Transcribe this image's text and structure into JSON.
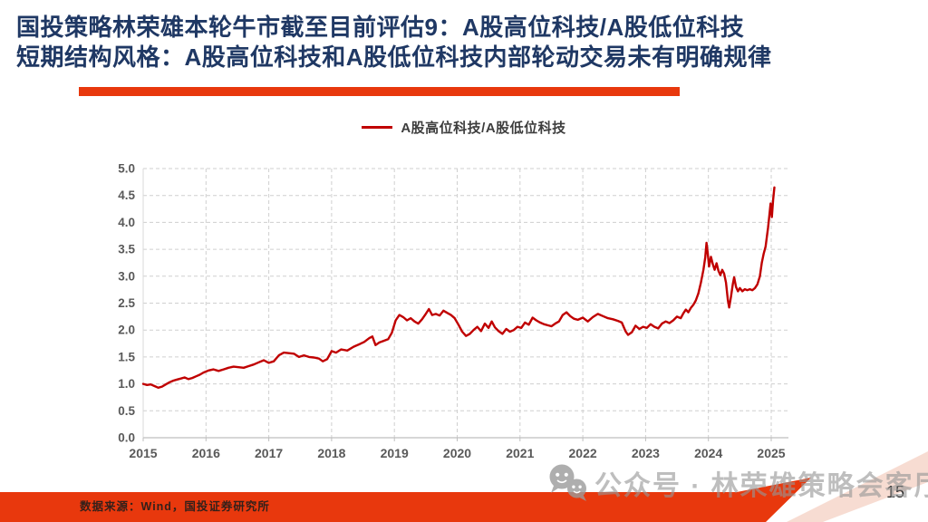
{
  "slide": {
    "title_line1": "国投策略林荣雄本轮牛市截至目前评估9：A股高位科技/A股低位科技",
    "title_line2": "短期结构风格：A股高位科技和A股低位科技内部轮动交易未有明确规律",
    "source_note": "数据来源：Wind，国投证券研究所",
    "watermark_text": "公众号 · 林荣雄策略会客厅",
    "page_number": "15",
    "colors": {
      "title_navy": "#1F3864",
      "accent_red": "#E8380D",
      "line_red": "#C00000",
      "grid_gray": "#CFCFCF",
      "axis_gray": "#BFBFBF",
      "axis_label_gray": "#595959",
      "watermark_gray": "#969696",
      "pink_wedge": "#F7DCD2"
    }
  },
  "chart_data": {
    "type": "line",
    "title": "",
    "legend_position": "top",
    "grid": "dashed",
    "xlabel": "",
    "ylabel": "",
    "xlim": [
      2015,
      2025.3
    ],
    "ylim": [
      0,
      5
    ],
    "y_ticks": [
      "0.0",
      "0.5",
      "1.0",
      "1.5",
      "2.0",
      "2.5",
      "3.0",
      "3.5",
      "4.0",
      "4.5",
      "5.0"
    ],
    "x_ticks": [
      "2015",
      "2016",
      "2017",
      "2018",
      "2019",
      "2020",
      "2021",
      "2022",
      "2023",
      "2024",
      "2025"
    ],
    "series": [
      {
        "name": "A股高位科技/A股低位科技",
        "color": "#C00000",
        "points": [
          [
            2015.0,
            1.0
          ],
          [
            2015.06,
            0.98
          ],
          [
            2015.12,
            0.99
          ],
          [
            2015.18,
            0.96
          ],
          [
            2015.24,
            0.93
          ],
          [
            2015.3,
            0.95
          ],
          [
            2015.36,
            0.99
          ],
          [
            2015.42,
            1.03
          ],
          [
            2015.48,
            1.06
          ],
          [
            2015.54,
            1.08
          ],
          [
            2015.6,
            1.1
          ],
          [
            2015.66,
            1.12
          ],
          [
            2015.72,
            1.09
          ],
          [
            2015.78,
            1.11
          ],
          [
            2015.84,
            1.14
          ],
          [
            2015.9,
            1.17
          ],
          [
            2015.96,
            1.21
          ],
          [
            2016.04,
            1.25
          ],
          [
            2016.12,
            1.27
          ],
          [
            2016.2,
            1.24
          ],
          [
            2016.28,
            1.27
          ],
          [
            2016.36,
            1.3
          ],
          [
            2016.44,
            1.32
          ],
          [
            2016.52,
            1.31
          ],
          [
            2016.6,
            1.3
          ],
          [
            2016.68,
            1.33
          ],
          [
            2016.76,
            1.36
          ],
          [
            2016.84,
            1.4
          ],
          [
            2016.92,
            1.44
          ],
          [
            2017.0,
            1.39
          ],
          [
            2017.08,
            1.42
          ],
          [
            2017.16,
            1.53
          ],
          [
            2017.24,
            1.58
          ],
          [
            2017.32,
            1.57
          ],
          [
            2017.4,
            1.56
          ],
          [
            2017.48,
            1.5
          ],
          [
            2017.56,
            1.53
          ],
          [
            2017.64,
            1.5
          ],
          [
            2017.72,
            1.49
          ],
          [
            2017.8,
            1.47
          ],
          [
            2017.86,
            1.42
          ],
          [
            2017.93,
            1.46
          ],
          [
            2018.0,
            1.61
          ],
          [
            2018.07,
            1.58
          ],
          [
            2018.15,
            1.64
          ],
          [
            2018.25,
            1.62
          ],
          [
            2018.35,
            1.69
          ],
          [
            2018.45,
            1.74
          ],
          [
            2018.52,
            1.78
          ],
          [
            2018.6,
            1.85
          ],
          [
            2018.65,
            1.88
          ],
          [
            2018.7,
            1.72
          ],
          [
            2018.76,
            1.77
          ],
          [
            2018.83,
            1.8
          ],
          [
            2018.9,
            1.83
          ],
          [
            2018.96,
            1.95
          ],
          [
            2019.02,
            2.18
          ],
          [
            2019.08,
            2.28
          ],
          [
            2019.14,
            2.24
          ],
          [
            2019.2,
            2.18
          ],
          [
            2019.26,
            2.22
          ],
          [
            2019.32,
            2.16
          ],
          [
            2019.38,
            2.12
          ],
          [
            2019.44,
            2.2
          ],
          [
            2019.5,
            2.3
          ],
          [
            2019.55,
            2.39
          ],
          [
            2019.6,
            2.28
          ],
          [
            2019.66,
            2.3
          ],
          [
            2019.72,
            2.27
          ],
          [
            2019.78,
            2.36
          ],
          [
            2019.84,
            2.32
          ],
          [
            2019.9,
            2.28
          ],
          [
            2019.96,
            2.22
          ],
          [
            2020.02,
            2.1
          ],
          [
            2020.08,
            1.97
          ],
          [
            2020.14,
            1.89
          ],
          [
            2020.2,
            1.93
          ],
          [
            2020.26,
            2.0
          ],
          [
            2020.32,
            2.06
          ],
          [
            2020.38,
            1.98
          ],
          [
            2020.44,
            2.12
          ],
          [
            2020.5,
            2.04
          ],
          [
            2020.55,
            2.16
          ],
          [
            2020.6,
            2.05
          ],
          [
            2020.66,
            1.98
          ],
          [
            2020.72,
            1.93
          ],
          [
            2020.78,
            2.02
          ],
          [
            2020.84,
            1.97
          ],
          [
            2020.9,
            2.0
          ],
          [
            2020.96,
            2.06
          ],
          [
            2021.02,
            2.04
          ],
          [
            2021.08,
            2.14
          ],
          [
            2021.14,
            2.1
          ],
          [
            2021.2,
            2.23
          ],
          [
            2021.26,
            2.18
          ],
          [
            2021.32,
            2.14
          ],
          [
            2021.38,
            2.11
          ],
          [
            2021.44,
            2.09
          ],
          [
            2021.5,
            2.07
          ],
          [
            2021.56,
            2.12
          ],
          [
            2021.62,
            2.16
          ],
          [
            2021.68,
            2.28
          ],
          [
            2021.74,
            2.33
          ],
          [
            2021.8,
            2.26
          ],
          [
            2021.86,
            2.21
          ],
          [
            2021.92,
            2.19
          ],
          [
            2022.0,
            2.23
          ],
          [
            2022.08,
            2.16
          ],
          [
            2022.16,
            2.24
          ],
          [
            2022.24,
            2.3
          ],
          [
            2022.32,
            2.26
          ],
          [
            2022.4,
            2.22
          ],
          [
            2022.48,
            2.2
          ],
          [
            2022.56,
            2.17
          ],
          [
            2022.62,
            2.14
          ],
          [
            2022.68,
            1.98
          ],
          [
            2022.72,
            1.91
          ],
          [
            2022.78,
            1.96
          ],
          [
            2022.84,
            2.08
          ],
          [
            2022.9,
            2.02
          ],
          [
            2022.96,
            2.06
          ],
          [
            2023.02,
            2.04
          ],
          [
            2023.08,
            2.11
          ],
          [
            2023.14,
            2.06
          ],
          [
            2023.2,
            2.03
          ],
          [
            2023.26,
            2.12
          ],
          [
            2023.32,
            2.16
          ],
          [
            2023.38,
            2.13
          ],
          [
            2023.44,
            2.18
          ],
          [
            2023.5,
            2.25
          ],
          [
            2023.56,
            2.22
          ],
          [
            2023.6,
            2.31
          ],
          [
            2023.64,
            2.38
          ],
          [
            2023.68,
            2.33
          ],
          [
            2023.72,
            2.41
          ],
          [
            2023.76,
            2.47
          ],
          [
            2023.8,
            2.55
          ],
          [
            2023.84,
            2.68
          ],
          [
            2023.88,
            2.88
          ],
          [
            2023.92,
            3.12
          ],
          [
            2023.95,
            3.35
          ],
          [
            2023.97,
            3.62
          ],
          [
            2023.99,
            3.42
          ],
          [
            2024.01,
            3.18
          ],
          [
            2024.04,
            3.36
          ],
          [
            2024.07,
            3.22
          ],
          [
            2024.1,
            3.12
          ],
          [
            2024.13,
            3.24
          ],
          [
            2024.16,
            3.1
          ],
          [
            2024.19,
            3.02
          ],
          [
            2024.22,
            3.12
          ],
          [
            2024.25,
            3.05
          ],
          [
            2024.28,
            2.88
          ],
          [
            2024.31,
            2.55
          ],
          [
            2024.33,
            2.42
          ],
          [
            2024.36,
            2.62
          ],
          [
            2024.39,
            2.86
          ],
          [
            2024.41,
            2.98
          ],
          [
            2024.44,
            2.8
          ],
          [
            2024.47,
            2.72
          ],
          [
            2024.5,
            2.78
          ],
          [
            2024.54,
            2.72
          ],
          [
            2024.58,
            2.76
          ],
          [
            2024.62,
            2.74
          ],
          [
            2024.66,
            2.76
          ],
          [
            2024.7,
            2.74
          ],
          [
            2024.74,
            2.78
          ],
          [
            2024.78,
            2.85
          ],
          [
            2024.82,
            3.0
          ],
          [
            2024.85,
            3.25
          ],
          [
            2024.88,
            3.42
          ],
          [
            2024.91,
            3.55
          ],
          [
            2024.93,
            3.72
          ],
          [
            2024.95,
            3.9
          ],
          [
            2024.97,
            4.12
          ],
          [
            2024.99,
            4.35
          ],
          [
            2025.01,
            4.1
          ],
          [
            2025.03,
            4.42
          ],
          [
            2025.05,
            4.65
          ]
        ]
      }
    ]
  }
}
